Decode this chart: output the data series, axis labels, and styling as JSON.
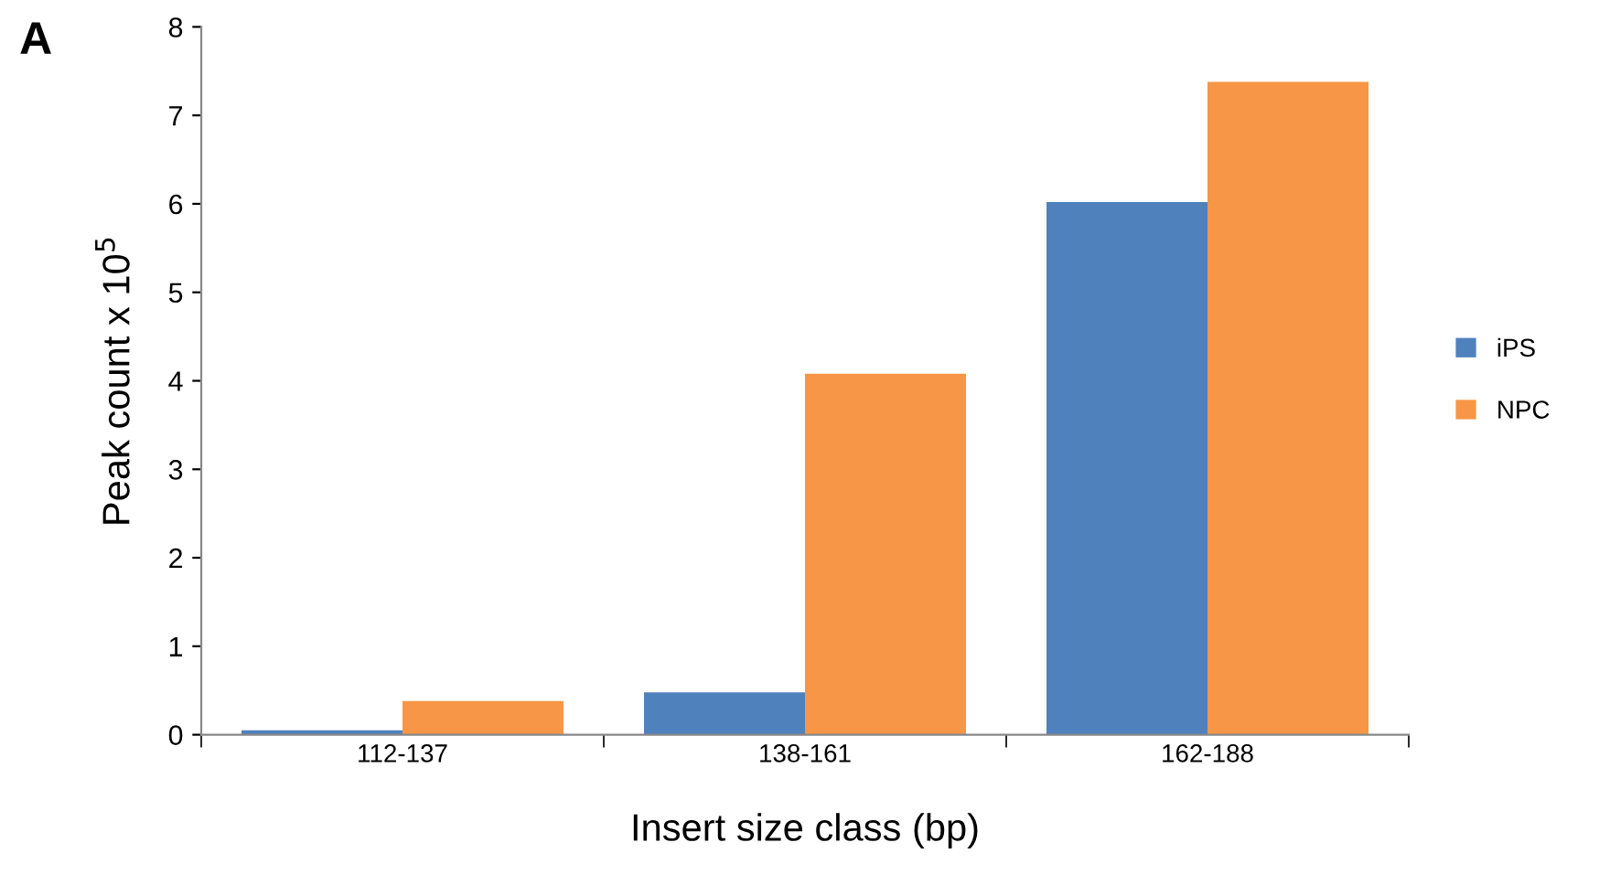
{
  "chart_data": {
    "type": "bar",
    "xlabel": "Insert size class (bp)",
    "ylabel": "Peak count x 10$^{5}$",
    "categories": [
      "112-137",
      "138-161",
      "162-188"
    ],
    "series": [
      {
        "name": "iPS",
        "color": "#4f81bd",
        "values": [
          0.05,
          0.48,
          6.02
        ]
      },
      {
        "name": "NPC",
        "color": "#f79646",
        "values": [
          0.38,
          4.08,
          7.38
        ]
      }
    ],
    "ylim": [
      0,
      8
    ],
    "yticks": [
      0,
      1,
      2,
      3,
      4,
      5,
      6,
      7,
      8
    ],
    "grid": false,
    "legend": "right",
    "annotations": [
      "A"
    ]
  }
}
